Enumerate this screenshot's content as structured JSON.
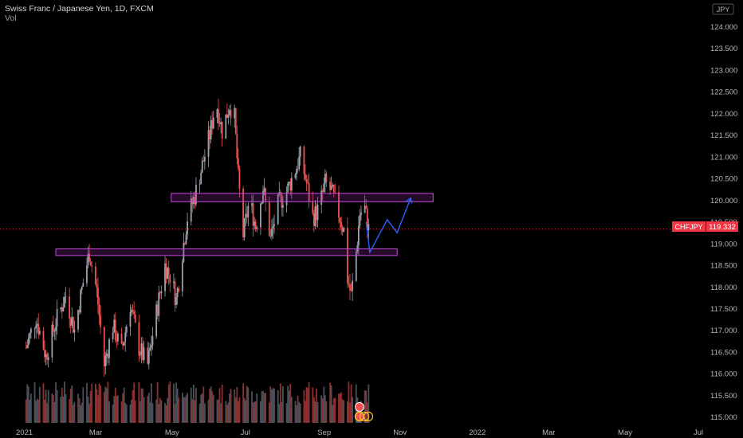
{
  "legend": {
    "title": "Swiss Franc / Japanese Yen, 1D, FXCM",
    "volume_label": "Vol"
  },
  "currency_badge": "JPY",
  "price_tag": {
    "symbol": "CHFJPY",
    "value": "119.332",
    "color": "#f23645"
  },
  "colors": {
    "background": "#000000",
    "up": "#9aa3ad",
    "down": "#ef5350",
    "up_volume": "#4a5058",
    "down_volume": "#8c2f2f",
    "zone": "#c04bd6",
    "projection": "#2962ff"
  },
  "chart_data": {
    "type": "candlestick",
    "symbol": "CHFJPY",
    "interval": "1D",
    "y_axis": {
      "ticks": [
        "115.000",
        "115.500",
        "116.000",
        "116.500",
        "117.000",
        "117.500",
        "118.000",
        "118.500",
        "119.000",
        "119.500",
        "120.000",
        "120.500",
        "121.000",
        "121.500",
        "122.000",
        "122.500",
        "123.000",
        "123.500",
        "124.000"
      ],
      "range": [
        114.7,
        124.55
      ]
    },
    "x_axis": {
      "ticks": [
        "2021",
        "Mar",
        "May",
        "Jul",
        "Sep",
        "Nov",
        "2022",
        "Mar",
        "May",
        "Jul"
      ]
    },
    "price_path": [
      [
        "2021-01-04",
        116.6
      ],
      [
        "2021-01-12",
        117.3
      ],
      [
        "2021-01-20",
        116.4
      ],
      [
        "2021-01-28",
        117.2
      ],
      [
        "2021-02-05",
        117.8
      ],
      [
        "2021-02-12",
        117.0
      ],
      [
        "2021-02-19",
        118.1
      ],
      [
        "2021-02-24",
        118.8
      ],
      [
        "2021-03-02",
        117.9
      ],
      [
        "2021-03-08",
        116.2
      ],
      [
        "2021-03-15",
        117.1
      ],
      [
        "2021-03-22",
        116.5
      ],
      [
        "2021-03-29",
        117.6
      ],
      [
        "2021-04-05",
        116.6
      ],
      [
        "2021-04-12",
        116.2
      ],
      [
        "2021-04-19",
        117.4
      ],
      [
        "2021-04-26",
        118.5
      ],
      [
        "2021-05-01",
        118.2
      ],
      [
        "2021-05-05",
        117.7
      ],
      [
        "2021-05-10",
        118.8
      ],
      [
        "2021-05-14",
        119.6
      ],
      [
        "2021-05-20",
        120.1
      ],
      [
        "2021-05-26",
        120.8
      ],
      [
        "2021-06-01",
        121.5
      ],
      [
        "2021-06-06",
        122.3
      ],
      [
        "2021-06-11",
        121.6
      ],
      [
        "2021-06-17",
        122.2
      ],
      [
        "2021-06-21",
        121.9
      ],
      [
        "2021-06-24",
        120.5
      ],
      [
        "2021-06-28",
        119.2
      ],
      [
        "2021-07-03",
        120.0
      ],
      [
        "2021-07-08",
        119.4
      ],
      [
        "2021-07-14",
        120.3
      ],
      [
        "2021-07-20",
        119.1
      ],
      [
        "2021-07-26",
        119.9
      ],
      [
        "2021-08-02",
        120.2
      ],
      [
        "2021-08-09",
        120.7
      ],
      [
        "2021-08-13",
        121.0
      ],
      [
        "2021-08-18",
        120.4
      ],
      [
        "2021-08-23",
        119.6
      ],
      [
        "2021-08-28",
        119.8
      ],
      [
        "2021-09-02",
        120.4
      ],
      [
        "2021-09-07",
        120.2
      ],
      [
        "2021-09-12",
        119.8
      ],
      [
        "2021-09-17",
        119.3
      ],
      [
        "2021-09-20",
        118.2
      ],
      [
        "2021-09-23",
        117.8
      ],
      [
        "2021-09-27",
        118.8
      ],
      [
        "2021-09-30",
        119.7
      ],
      [
        "2021-10-04",
        119.8
      ],
      [
        "2021-10-07",
        119.33
      ]
    ],
    "volume_range": [
      0,
      1
    ],
    "annotations": {
      "resistance_zone": {
        "from": "2021-05-01",
        "to": "2021-11-28",
        "low": 120.0,
        "high": 120.12
      },
      "support_zone": {
        "from": "2021-01-28",
        "to": "2021-10-30",
        "low": 118.76,
        "high": 118.84
      },
      "projection": [
        [
          "2021-10-05",
          119.5
        ],
        [
          "2021-10-08",
          118.8
        ],
        [
          "2021-10-22",
          119.55
        ],
        [
          "2021-10-30",
          119.25
        ],
        [
          "2021-11-10",
          120.05
        ]
      ]
    },
    "last_price": 119.332
  }
}
